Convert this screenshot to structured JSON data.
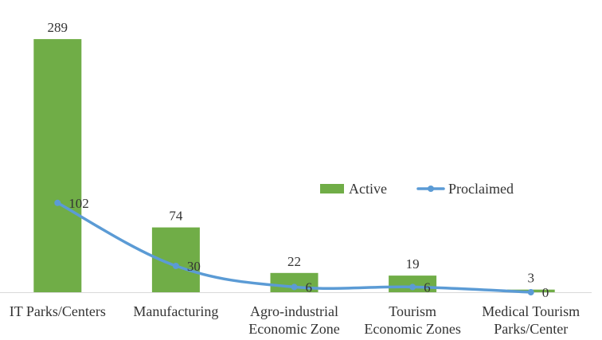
{
  "chart_data": {
    "type": "bar",
    "categories": [
      [
        "IT Parks/Centers"
      ],
      [
        "Manufacturing"
      ],
      [
        "Agro-industrial",
        "Economic Zone"
      ],
      [
        "Tourism",
        "Economic Zones"
      ],
      [
        "Medical Tourism",
        "Parks/Center"
      ]
    ],
    "series": [
      {
        "name": "Active",
        "type": "bar",
        "color": "#70AD47",
        "values": [
          289,
          74,
          22,
          19,
          3
        ]
      },
      {
        "name": "Proclaimed",
        "type": "line",
        "color": "#5B9BD5",
        "values": [
          102,
          30,
          6,
          6,
          0
        ]
      }
    ],
    "ylim": [
      0,
      300
    ],
    "grid": false,
    "legend": {
      "position": "center-right",
      "entries": [
        "Active",
        "Proclaimed"
      ]
    },
    "title": "",
    "xlabel": "",
    "ylabel": ""
  }
}
